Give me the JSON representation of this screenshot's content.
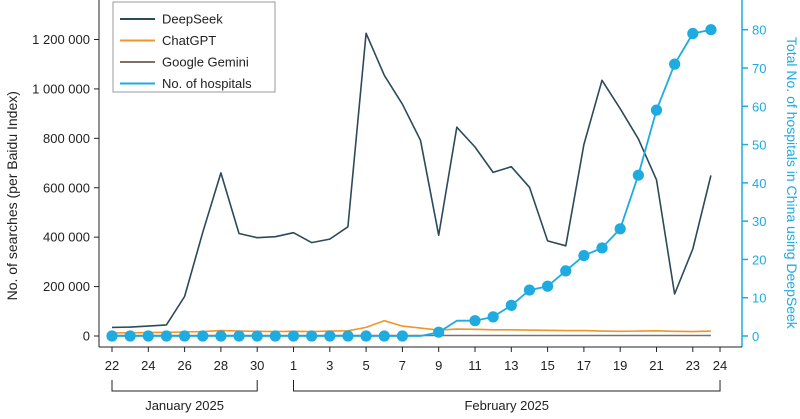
{
  "chart_data": {
    "type": "line",
    "x": [
      "2025-01-22",
      "2025-01-23",
      "2025-01-24",
      "2025-01-25",
      "2025-01-26",
      "2025-01-27",
      "2025-01-28",
      "2025-01-29",
      "2025-01-30",
      "2025-01-31",
      "2025-02-01",
      "2025-02-02",
      "2025-02-03",
      "2025-02-04",
      "2025-02-05",
      "2025-02-06",
      "2025-02-07",
      "2025-02-08",
      "2025-02-09",
      "2025-02-10",
      "2025-02-11",
      "2025-02-12",
      "2025-02-13",
      "2025-02-14",
      "2025-02-15",
      "2025-02-16",
      "2025-02-17",
      "2025-02-18",
      "2025-02-19",
      "2025-02-20",
      "2025-02-21",
      "2025-02-22",
      "2025-02-23",
      "2025-02-24"
    ],
    "x_tick_labels": [
      "22",
      "24",
      "26",
      "28",
      "30",
      "1",
      "3",
      "5",
      "7",
      "9",
      "11",
      "13",
      "15",
      "17",
      "19",
      "21",
      "23",
      "24"
    ],
    "x_groups": [
      "January 2025",
      "February 2025"
    ],
    "ylabel": "No. of searches (per Baidu Index)",
    "ylim": [
      0,
      1300000
    ],
    "y_tick_labels": [
      "0",
      "200 000",
      "400 000",
      "600 000",
      "800 000",
      "1 000 000",
      "1 200 000"
    ],
    "y2label": "Total No. of hospitals in China using DeepSeek",
    "y2lim": [
      0,
      85
    ],
    "y2_tick_labels": [
      "0",
      "10",
      "20",
      "30",
      "40",
      "50",
      "60",
      "70",
      "80"
    ],
    "grid": false,
    "legend_position": "top-left",
    "series": [
      {
        "name": "DeepSeek",
        "axis": "left",
        "color": "#2b4a5b",
        "values": [
          35000,
          36000,
          40000,
          45000,
          160000,
          420000,
          660000,
          415000,
          398000,
          402000,
          418000,
          378000,
          392000,
          442000,
          1225000,
          1055000,
          938000,
          792000,
          408000,
          845000,
          765000,
          662000,
          685000,
          602000,
          385000,
          365000,
          775000,
          1035000,
          920000,
          798000,
          632000,
          170000,
          352000,
          650000
        ]
      },
      {
        "name": "ChatGPT",
        "axis": "left",
        "color": "#f0952a",
        "values": [
          12000,
          13000,
          14000,
          15000,
          16000,
          18000,
          22000,
          20000,
          19000,
          18000,
          19000,
          18000,
          20000,
          21000,
          35000,
          62000,
          40000,
          32000,
          24000,
          28000,
          27000,
          25000,
          25000,
          24000,
          23000,
          22000,
          22000,
          20000,
          19000,
          20000,
          21000,
          19000,
          18000,
          20000
        ]
      },
      {
        "name": "Google Gemini",
        "axis": "left",
        "color": "#7b7168",
        "values": [
          2000,
          2000,
          2000,
          2000,
          2000,
          2000,
          2000,
          2000,
          2000,
          2000,
          2000,
          2000,
          2000,
          2000,
          2000,
          2000,
          2000,
          2000,
          2000,
          2000,
          2000,
          2000,
          2000,
          2000,
          2000,
          2000,
          2000,
          2000,
          2000,
          2000,
          2000,
          2000,
          2000,
          2000
        ]
      },
      {
        "name": "No. of hospitals",
        "axis": "right",
        "color": "#1eabe0",
        "values": [
          0,
          0,
          0,
          0,
          0,
          0,
          0,
          0,
          0,
          0,
          0,
          0,
          0,
          0,
          0,
          0,
          0,
          0,
          1,
          4,
          4,
          5,
          8,
          12,
          13,
          17,
          21,
          23,
          28,
          42,
          59,
          71,
          79,
          80
        ],
        "markers_from_index": 0,
        "unmarked_indices": [
          17,
          19
        ]
      }
    ]
  }
}
